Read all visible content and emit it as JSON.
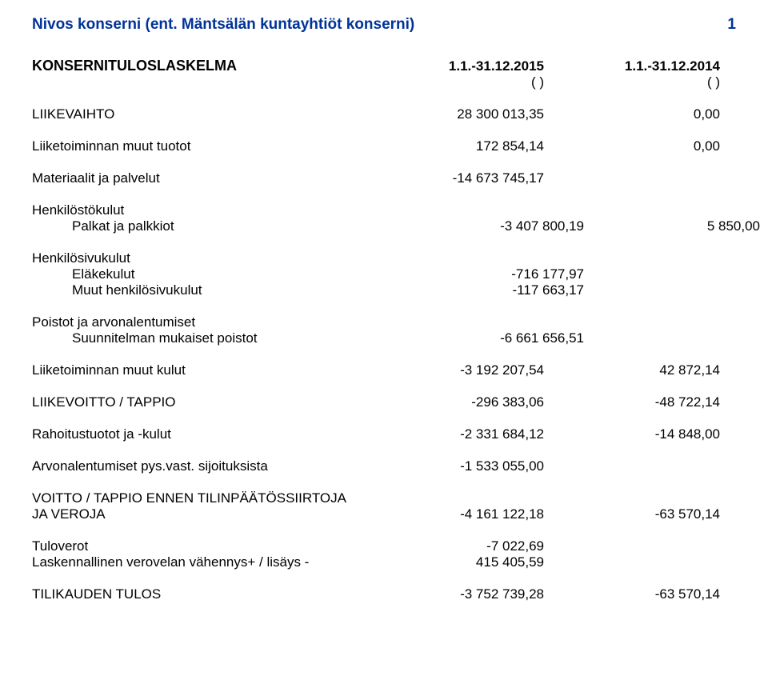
{
  "header": {
    "company_name": "Nivos konserni (ent. Mäntsälän kuntayhtiöt konserni)",
    "page_number": "1"
  },
  "statement": {
    "title": "KONSERNITULOSLASKELMA",
    "date1": "1.1.-31.12.2015",
    "date2": "1.1.-31.12.2014",
    "paren1": "( )",
    "paren2": "( )"
  },
  "rows": {
    "liikevaihto": {
      "label": "LIIKEVAIHTO",
      "v1": "28 300 013,35",
      "v2": "0,00"
    },
    "liiketoiminnan_muut_tuotot": {
      "label": "Liiketoiminnan muut tuotot",
      "v1": "172 854,14",
      "v2": "0,00"
    },
    "materiaalit": {
      "label": "Materiaalit ja palvelut",
      "v1": "-14 673 745,17",
      "v2": ""
    },
    "henkilostokulut": {
      "label": "Henkilöstökulut",
      "v1": "",
      "v2": ""
    },
    "palkat": {
      "label": "Palkat ja palkkiot",
      "v1": "-3 407 800,19",
      "v2": "5 850,00"
    },
    "henkilosivukulut": {
      "label": "Henkilösivukulut",
      "v1": "",
      "v2": ""
    },
    "elakekulut": {
      "label": "Eläkekulut",
      "v1": "-716 177,97",
      "v2": ""
    },
    "muut_henkilosivukulut": {
      "label": "Muut henkilösivukulut",
      "v1": "-117 663,17",
      "v2": ""
    },
    "poistot_arvon": {
      "label": "Poistot ja arvonalentumiset",
      "v1": "",
      "v2": ""
    },
    "suunnitelman_poistot": {
      "label": "Suunnitelman mukaiset poistot",
      "v1": "-6 661 656,51",
      "v2": ""
    },
    "liiketoiminnan_muut_kulut": {
      "label": "Liiketoiminnan muut kulut",
      "v1": "-3 192 207,54",
      "v2": "42 872,14"
    },
    "liikevoitto": {
      "label": "LIIKEVOITTO / TAPPIO",
      "v1": "-296 383,06",
      "v2": "-48 722,14"
    },
    "rahoitustuotot": {
      "label": "Rahoitustuotot ja -kulut",
      "v1": "-2 331 684,12",
      "v2": "-14 848,00"
    },
    "arvonalentumiset": {
      "label": "Arvonalentumiset pys.vast. sijoituksista",
      "v1": "-1 533 055,00",
      "v2": ""
    },
    "voitto_line1": {
      "label": "VOITTO / TAPPIO ENNEN TILINPÄÄTÖSSIIRTOJA"
    },
    "voitto_line2": {
      "label": "JA VEROJA",
      "v1": "-4 161 122,18",
      "v2": "-63 570,14"
    },
    "tuloverot": {
      "label": "Tuloverot",
      "v1": "-7 022,69",
      "v2": ""
    },
    "laskennallinen": {
      "label": "Laskennallinen verovelan vähennys+ / lisäys -",
      "v1": "415 405,59",
      "v2": ""
    },
    "tilikauden_tulos": {
      "label": "TILIKAUDEN TULOS",
      "v1": "-3 752 739,28",
      "v2": "-63 570,14"
    }
  }
}
